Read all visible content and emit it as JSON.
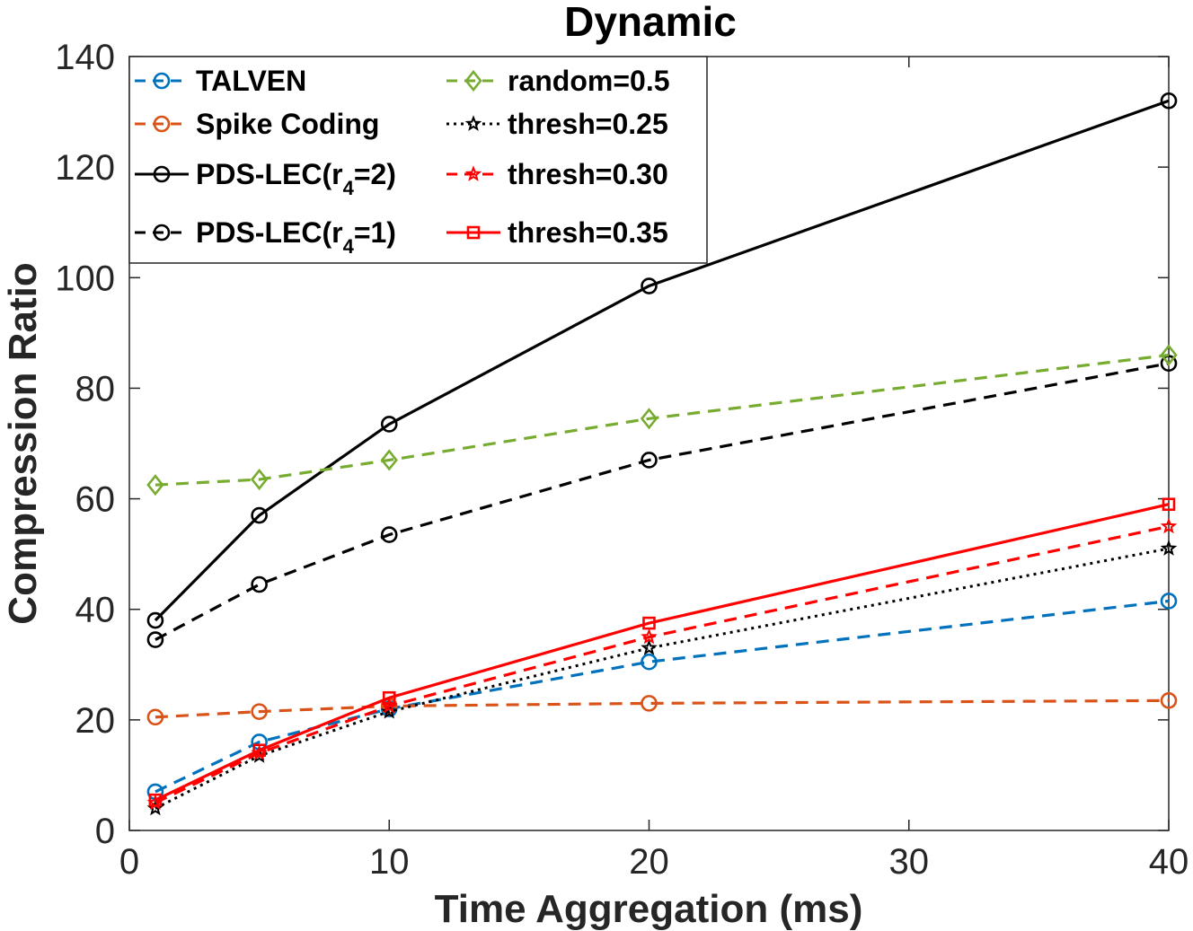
{
  "chart_data": {
    "type": "line",
    "title": "Dynamic",
    "xlabel": "Time Aggregation (ms)",
    "ylabel": "Compression Ratio",
    "xlim": [
      0,
      40
    ],
    "ylim": [
      0,
      140
    ],
    "xticks": [
      0,
      10,
      20,
      30,
      40
    ],
    "yticks": [
      0,
      20,
      40,
      60,
      80,
      100,
      120,
      140
    ],
    "grid": false,
    "legend_position": "top-left",
    "x": [
      1,
      5,
      10,
      20,
      40
    ],
    "series": [
      {
        "name": "TALVEN",
        "label_parts": [
          "TALVEN"
        ],
        "values": [
          7,
          16,
          22,
          30.5,
          41.5
        ],
        "color": "#0072BD",
        "dash": "dashed",
        "marker": "circle"
      },
      {
        "name": "Spike Coding",
        "label_parts": [
          "Spike Coding"
        ],
        "values": [
          20.5,
          21.5,
          22.5,
          23,
          23.5
        ],
        "color": "#D95319",
        "dash": "dashed",
        "marker": "circle"
      },
      {
        "name": "PDS-LEC(r4=2)",
        "label_parts": [
          "PDS-LEC(r",
          "4",
          "=2)"
        ],
        "values": [
          38,
          57,
          73.5,
          98.5,
          132
        ],
        "color": "#000000",
        "dash": "solid",
        "marker": "circle"
      },
      {
        "name": "PDS-LEC(r4=1)",
        "label_parts": [
          "PDS-LEC(r",
          "4",
          "=1)"
        ],
        "values": [
          34.5,
          44.5,
          53.5,
          67,
          84.5
        ],
        "color": "#000000",
        "dash": "dashed",
        "marker": "circle"
      },
      {
        "name": "random=0.5",
        "label_parts": [
          "random=0.5"
        ],
        "values": [
          62.5,
          63.5,
          67,
          74.5,
          86
        ],
        "color": "#77AC30",
        "dash": "dashed",
        "marker": "diamond"
      },
      {
        "name": "thresh=0.25",
        "label_parts": [
          "thresh=0.25"
        ],
        "values": [
          4,
          13.5,
          21.5,
          33,
          51
        ],
        "color": "#000000",
        "dash": "dotted",
        "marker": "star"
      },
      {
        "name": "thresh=0.30",
        "label_parts": [
          "thresh=0.30"
        ],
        "values": [
          5,
          14,
          22.5,
          35,
          55
        ],
        "color": "#FF0000",
        "dash": "dashed",
        "marker": "star"
      },
      {
        "name": "thresh=0.35",
        "label_parts": [
          "thresh=0.35"
        ],
        "values": [
          5.5,
          14.5,
          24,
          37.5,
          59
        ],
        "color": "#FF0000",
        "dash": "solid",
        "marker": "square"
      }
    ]
  }
}
